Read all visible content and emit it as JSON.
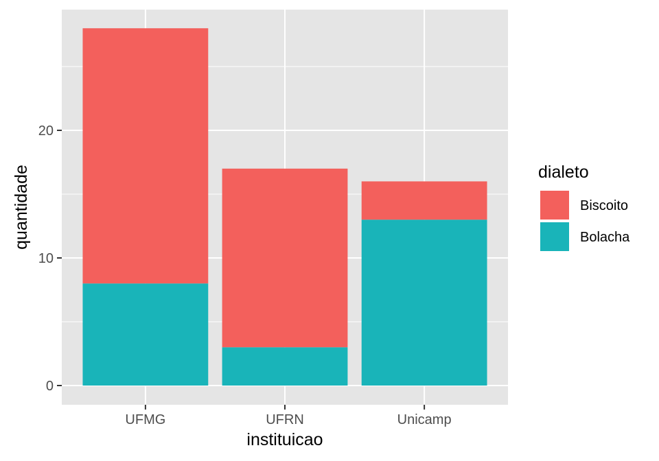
{
  "chart_data": {
    "type": "bar",
    "stacked": true,
    "categories": [
      "UFMG",
      "UFRN",
      "Unicamp"
    ],
    "series": [
      {
        "name": "Bolacha",
        "values": [
          8,
          3,
          13
        ],
        "color": "#19B4B9"
      },
      {
        "name": "Biscoito",
        "values": [
          20,
          14,
          3
        ],
        "color": "#F3605C"
      }
    ],
    "xlabel": "instituicao",
    "ylabel": "quantidade",
    "ylim": [
      0,
      29.4
    ],
    "yticks": [
      0,
      10,
      20
    ],
    "y_minor_gridlines": [
      5,
      15,
      25
    ],
    "grid": true,
    "panel_background": "#E5E5E5",
    "legend": {
      "title": "dialeto",
      "placement": "right",
      "entries": [
        "Biscoito",
        "Bolacha"
      ]
    }
  }
}
